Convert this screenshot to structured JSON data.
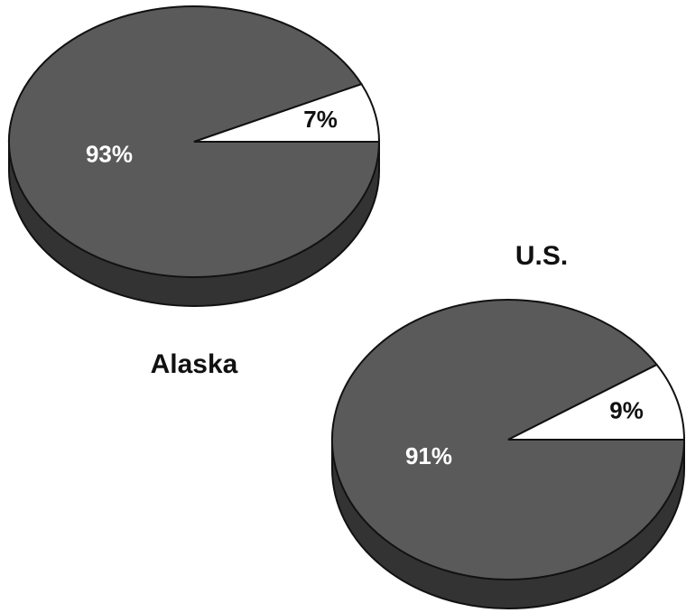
{
  "chart_data": [
    {
      "type": "pie",
      "title": "Alaska",
      "values": [
        93,
        7
      ],
      "value_labels": [
        "93%",
        "7%"
      ],
      "colors": [
        "#5a5a5a",
        "#ffffff"
      ]
    },
    {
      "type": "pie",
      "title": "U.S.",
      "values": [
        91,
        9
      ],
      "value_labels": [
        "91%",
        "9%"
      ],
      "colors": [
        "#5a5a5a",
        "#ffffff"
      ]
    }
  ]
}
